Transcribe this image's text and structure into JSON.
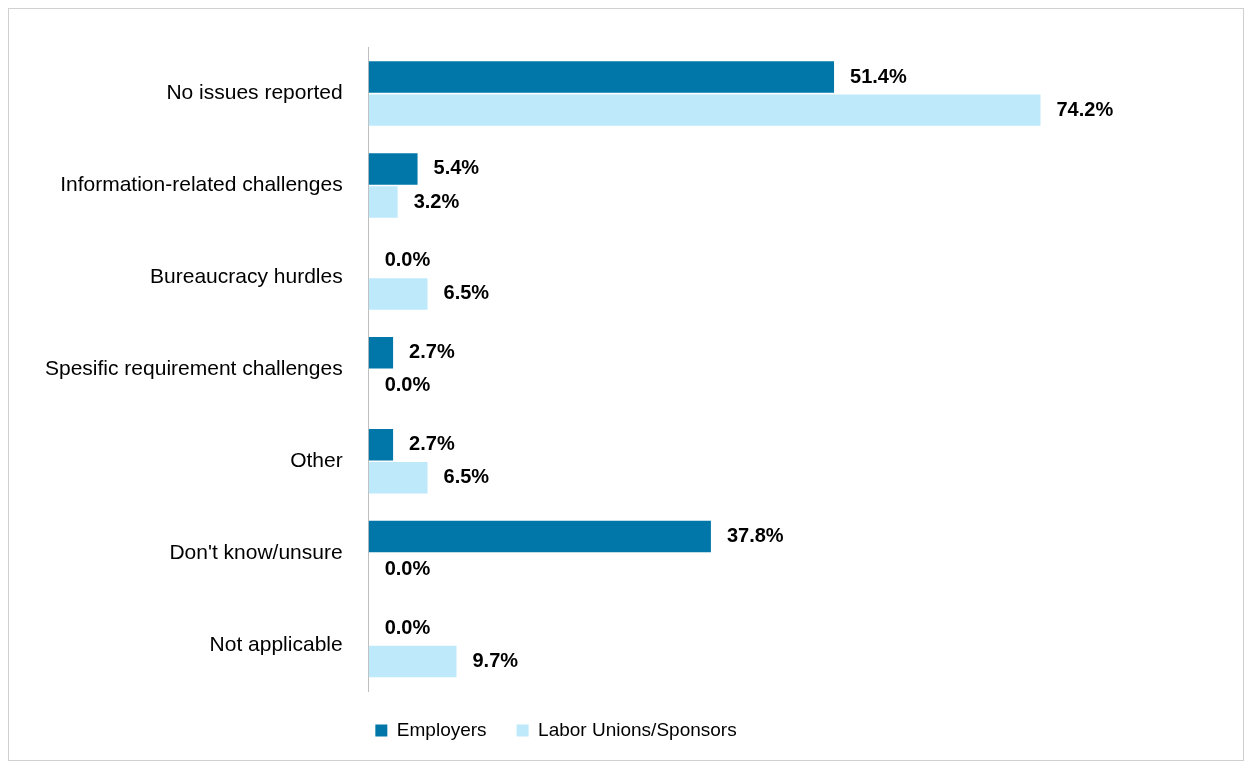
{
  "chart_data": {
    "type": "bar",
    "orientation": "horizontal",
    "categories": [
      "No issues reported",
      "Information-related challenges",
      "Bureaucracy hurdles",
      "Spesific requirement challenges",
      "Other",
      "Don't know/unsure",
      "Not applicable"
    ],
    "series": [
      {
        "name": "Employers",
        "color": "#0077a8",
        "values": [
          51.4,
          5.4,
          0.0,
          2.7,
          2.7,
          37.8,
          0.0
        ],
        "value_labels": [
          "51.4%",
          "5.4%",
          "0.0%",
          "2.7%",
          "2.7%",
          "37.8%",
          "0.0%"
        ]
      },
      {
        "name": "Labor Unions/Sponsors",
        "color": "#bde9fb",
        "values": [
          74.2,
          3.2,
          6.5,
          0.0,
          6.5,
          0.0,
          9.7
        ],
        "value_labels": [
          "74.2%",
          "3.2%",
          "6.5%",
          "0.0%",
          "6.5%",
          "0.0%",
          "9.7%"
        ]
      }
    ],
    "legend": "bottom"
  }
}
